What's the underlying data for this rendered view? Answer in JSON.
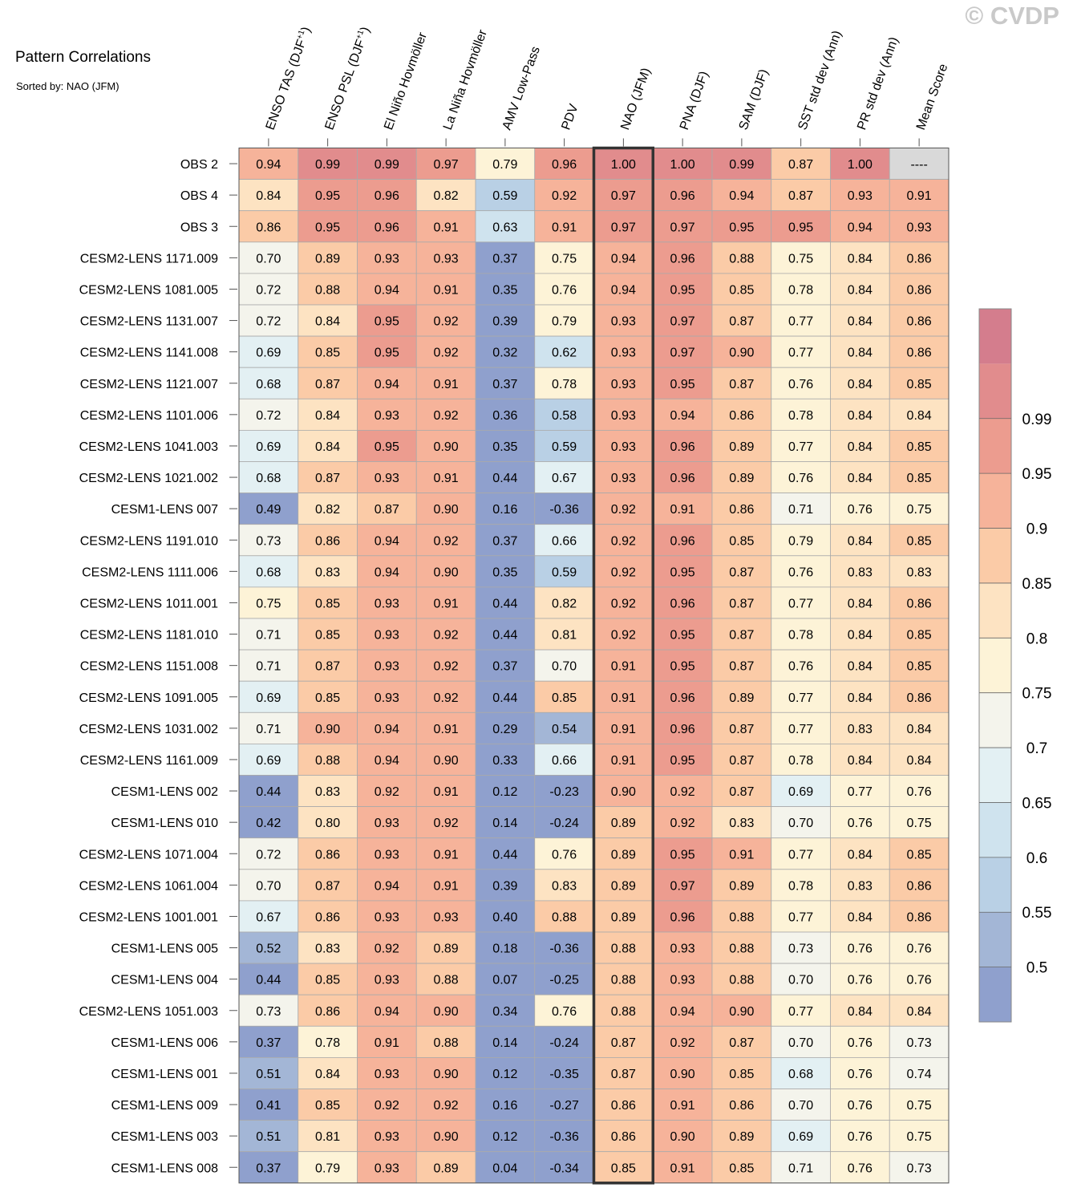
{
  "header": {
    "title": "Pattern Correlations",
    "subtitle": "Sorted by: NAO (JFM)",
    "watermark": "© CVDP"
  },
  "colors": {
    "palette": [
      "#8fa0cd",
      "#a3b6d6",
      "#b9d0e5",
      "#cfe3ee",
      "#e3f0f3",
      "#f4f4ec",
      "#fdf3d7",
      "#fde3c2",
      "#fbcba7",
      "#f6b39a",
      "#ec9c8f",
      "#e18c8d",
      "#d47d8d"
    ],
    "missing": "#d9d9d9",
    "grid": "#aaaaaa",
    "highlight_border": "#333333"
  },
  "chart_data": {
    "type": "heatmap",
    "title": "Pattern Correlations",
    "sorted_by": "NAO (JFM)",
    "highlight_column": "NAO (JFM)",
    "columns": [
      {
        "label": "ENSO TAS (DJF",
        "sup": "+1",
        "tail": ")"
      },
      {
        "label": "ENSO PSL (DJF",
        "sup": "+1",
        "tail": ")"
      },
      {
        "label": "El Niño Hovmöller",
        "sup": "",
        "tail": ""
      },
      {
        "label": "La Niña Hovmöller",
        "sup": "",
        "tail": ""
      },
      {
        "label": "AMV Low-Pass",
        "sup": "",
        "tail": ""
      },
      {
        "label": "PDV",
        "sup": "",
        "tail": ""
      },
      {
        "label": "NAO (JFM)",
        "sup": "",
        "tail": ""
      },
      {
        "label": "PNA (DJF)",
        "sup": "",
        "tail": ""
      },
      {
        "label": "SAM (DJF)",
        "sup": "",
        "tail": ""
      },
      {
        "label": "SST std dev (Ann)",
        "sup": "",
        "tail": ""
      },
      {
        "label": "PR std dev (Ann)",
        "sup": "",
        "tail": ""
      },
      {
        "label": "Mean Score",
        "sup": "",
        "tail": ""
      }
    ],
    "rows": [
      {
        "name": "OBS 2",
        "values": [
          "0.94",
          "0.99",
          "0.99",
          "0.97",
          "0.79",
          "0.96",
          "1.00",
          "1.00",
          "0.99",
          "0.87",
          "1.00",
          "----"
        ]
      },
      {
        "name": "OBS 4",
        "values": [
          "0.84",
          "0.95",
          "0.96",
          "0.82",
          "0.59",
          "0.92",
          "0.97",
          "0.96",
          "0.94",
          "0.87",
          "0.93",
          "0.91"
        ]
      },
      {
        "name": "OBS 3",
        "values": [
          "0.86",
          "0.95",
          "0.96",
          "0.91",
          "0.63",
          "0.91",
          "0.97",
          "0.97",
          "0.95",
          "0.95",
          "0.94",
          "0.93"
        ]
      },
      {
        "name": "CESM2-LENS 1171.009",
        "values": [
          "0.70",
          "0.89",
          "0.93",
          "0.93",
          "0.37",
          "0.75",
          "0.94",
          "0.96",
          "0.88",
          "0.75",
          "0.84",
          "0.86"
        ]
      },
      {
        "name": "CESM2-LENS 1081.005",
        "values": [
          "0.72",
          "0.88",
          "0.94",
          "0.91",
          "0.35",
          "0.76",
          "0.94",
          "0.95",
          "0.85",
          "0.78",
          "0.84",
          "0.86"
        ]
      },
      {
        "name": "CESM2-LENS 1131.007",
        "values": [
          "0.72",
          "0.84",
          "0.95",
          "0.92",
          "0.39",
          "0.79",
          "0.93",
          "0.97",
          "0.87",
          "0.77",
          "0.84",
          "0.86"
        ]
      },
      {
        "name": "CESM2-LENS 1141.008",
        "values": [
          "0.69",
          "0.85",
          "0.95",
          "0.92",
          "0.32",
          "0.62",
          "0.93",
          "0.97",
          "0.90",
          "0.77",
          "0.84",
          "0.86"
        ]
      },
      {
        "name": "CESM2-LENS 1121.007",
        "values": [
          "0.68",
          "0.87",
          "0.94",
          "0.91",
          "0.37",
          "0.78",
          "0.93",
          "0.95",
          "0.87",
          "0.76",
          "0.84",
          "0.85"
        ]
      },
      {
        "name": "CESM2-LENS 1101.006",
        "values": [
          "0.72",
          "0.84",
          "0.93",
          "0.92",
          "0.36",
          "0.58",
          "0.93",
          "0.94",
          "0.86",
          "0.78",
          "0.84",
          "0.84"
        ]
      },
      {
        "name": "CESM2-LENS 1041.003",
        "values": [
          "0.69",
          "0.84",
          "0.95",
          "0.90",
          "0.35",
          "0.59",
          "0.93",
          "0.96",
          "0.89",
          "0.77",
          "0.84",
          "0.85"
        ]
      },
      {
        "name": "CESM2-LENS 1021.002",
        "values": [
          "0.68",
          "0.87",
          "0.93",
          "0.91",
          "0.44",
          "0.67",
          "0.93",
          "0.96",
          "0.89",
          "0.76",
          "0.84",
          "0.85"
        ]
      },
      {
        "name": "CESM1-LENS 007",
        "values": [
          "0.49",
          "0.82",
          "0.87",
          "0.90",
          "0.16",
          "-0.36",
          "0.92",
          "0.91",
          "0.86",
          "0.71",
          "0.76",
          "0.75"
        ]
      },
      {
        "name": "CESM2-LENS 1191.010",
        "values": [
          "0.73",
          "0.86",
          "0.94",
          "0.92",
          "0.37",
          "0.66",
          "0.92",
          "0.96",
          "0.85",
          "0.79",
          "0.84",
          "0.85"
        ]
      },
      {
        "name": "CESM2-LENS 1111.006",
        "values": [
          "0.68",
          "0.83",
          "0.94",
          "0.90",
          "0.35",
          "0.59",
          "0.92",
          "0.95",
          "0.87",
          "0.76",
          "0.83",
          "0.83"
        ]
      },
      {
        "name": "CESM2-LENS 1011.001",
        "values": [
          "0.75",
          "0.85",
          "0.93",
          "0.91",
          "0.44",
          "0.82",
          "0.92",
          "0.96",
          "0.87",
          "0.77",
          "0.84",
          "0.86"
        ]
      },
      {
        "name": "CESM2-LENS 1181.010",
        "values": [
          "0.71",
          "0.85",
          "0.93",
          "0.92",
          "0.44",
          "0.81",
          "0.92",
          "0.95",
          "0.87",
          "0.78",
          "0.84",
          "0.85"
        ]
      },
      {
        "name": "CESM2-LENS 1151.008",
        "values": [
          "0.71",
          "0.87",
          "0.93",
          "0.92",
          "0.37",
          "0.70",
          "0.91",
          "0.95",
          "0.87",
          "0.76",
          "0.84",
          "0.85"
        ]
      },
      {
        "name": "CESM2-LENS 1091.005",
        "values": [
          "0.69",
          "0.85",
          "0.93",
          "0.92",
          "0.44",
          "0.85",
          "0.91",
          "0.96",
          "0.89",
          "0.77",
          "0.84",
          "0.86"
        ]
      },
      {
        "name": "CESM2-LENS 1031.002",
        "values": [
          "0.71",
          "0.90",
          "0.94",
          "0.91",
          "0.29",
          "0.54",
          "0.91",
          "0.96",
          "0.87",
          "0.77",
          "0.83",
          "0.84"
        ]
      },
      {
        "name": "CESM2-LENS 1161.009",
        "values": [
          "0.69",
          "0.88",
          "0.94",
          "0.90",
          "0.33",
          "0.66",
          "0.91",
          "0.95",
          "0.87",
          "0.78",
          "0.84",
          "0.84"
        ]
      },
      {
        "name": "CESM1-LENS 002",
        "values": [
          "0.44",
          "0.83",
          "0.92",
          "0.91",
          "0.12",
          "-0.23",
          "0.90",
          "0.92",
          "0.87",
          "0.69",
          "0.77",
          "0.76"
        ]
      },
      {
        "name": "CESM1-LENS 010",
        "values": [
          "0.42",
          "0.80",
          "0.93",
          "0.92",
          "0.14",
          "-0.24",
          "0.89",
          "0.92",
          "0.83",
          "0.70",
          "0.76",
          "0.75"
        ]
      },
      {
        "name": "CESM2-LENS 1071.004",
        "values": [
          "0.72",
          "0.86",
          "0.93",
          "0.91",
          "0.44",
          "0.76",
          "0.89",
          "0.95",
          "0.91",
          "0.77",
          "0.84",
          "0.85"
        ]
      },
      {
        "name": "CESM2-LENS 1061.004",
        "values": [
          "0.70",
          "0.87",
          "0.94",
          "0.91",
          "0.39",
          "0.83",
          "0.89",
          "0.97",
          "0.89",
          "0.78",
          "0.83",
          "0.86"
        ]
      },
      {
        "name": "CESM2-LENS 1001.001",
        "values": [
          "0.67",
          "0.86",
          "0.93",
          "0.93",
          "0.40",
          "0.88",
          "0.89",
          "0.96",
          "0.88",
          "0.77",
          "0.84",
          "0.86"
        ]
      },
      {
        "name": "CESM1-LENS 005",
        "values": [
          "0.52",
          "0.83",
          "0.92",
          "0.89",
          "0.18",
          "-0.36",
          "0.88",
          "0.93",
          "0.88",
          "0.73",
          "0.76",
          "0.76"
        ]
      },
      {
        "name": "CESM1-LENS 004",
        "values": [
          "0.44",
          "0.85",
          "0.93",
          "0.88",
          "0.07",
          "-0.25",
          "0.88",
          "0.93",
          "0.88",
          "0.70",
          "0.76",
          "0.76"
        ]
      },
      {
        "name": "CESM2-LENS 1051.003",
        "values": [
          "0.73",
          "0.86",
          "0.94",
          "0.90",
          "0.34",
          "0.76",
          "0.88",
          "0.94",
          "0.90",
          "0.77",
          "0.84",
          "0.84"
        ]
      },
      {
        "name": "CESM1-LENS 006",
        "values": [
          "0.37",
          "0.78",
          "0.91",
          "0.88",
          "0.14",
          "-0.24",
          "0.87",
          "0.92",
          "0.87",
          "0.70",
          "0.76",
          "0.73"
        ]
      },
      {
        "name": "CESM1-LENS 001",
        "values": [
          "0.51",
          "0.84",
          "0.93",
          "0.90",
          "0.12",
          "-0.35",
          "0.87",
          "0.90",
          "0.85",
          "0.68",
          "0.76",
          "0.74"
        ]
      },
      {
        "name": "CESM1-LENS 009",
        "values": [
          "0.41",
          "0.85",
          "0.92",
          "0.92",
          "0.16",
          "-0.27",
          "0.86",
          "0.91",
          "0.86",
          "0.70",
          "0.76",
          "0.75"
        ]
      },
      {
        "name": "CESM1-LENS 003",
        "values": [
          "0.51",
          "0.81",
          "0.93",
          "0.90",
          "0.12",
          "-0.36",
          "0.86",
          "0.90",
          "0.89",
          "0.69",
          "0.76",
          "0.75"
        ]
      },
      {
        "name": "CESM1-LENS 008",
        "values": [
          "0.37",
          "0.79",
          "0.93",
          "0.89",
          "0.04",
          "-0.34",
          "0.85",
          "0.91",
          "0.85",
          "0.71",
          "0.76",
          "0.73"
        ]
      }
    ],
    "colorbar": {
      "levels": [
        0.5,
        0.55,
        0.6,
        0.65,
        0.7,
        0.75,
        0.8,
        0.85,
        0.9,
        0.95,
        0.99
      ],
      "labels": [
        "0.5",
        "0.55",
        "0.6",
        "0.65",
        "0.7",
        "0.75",
        "0.8",
        "0.85",
        "0.9",
        "0.95",
        "0.99"
      ]
    }
  }
}
